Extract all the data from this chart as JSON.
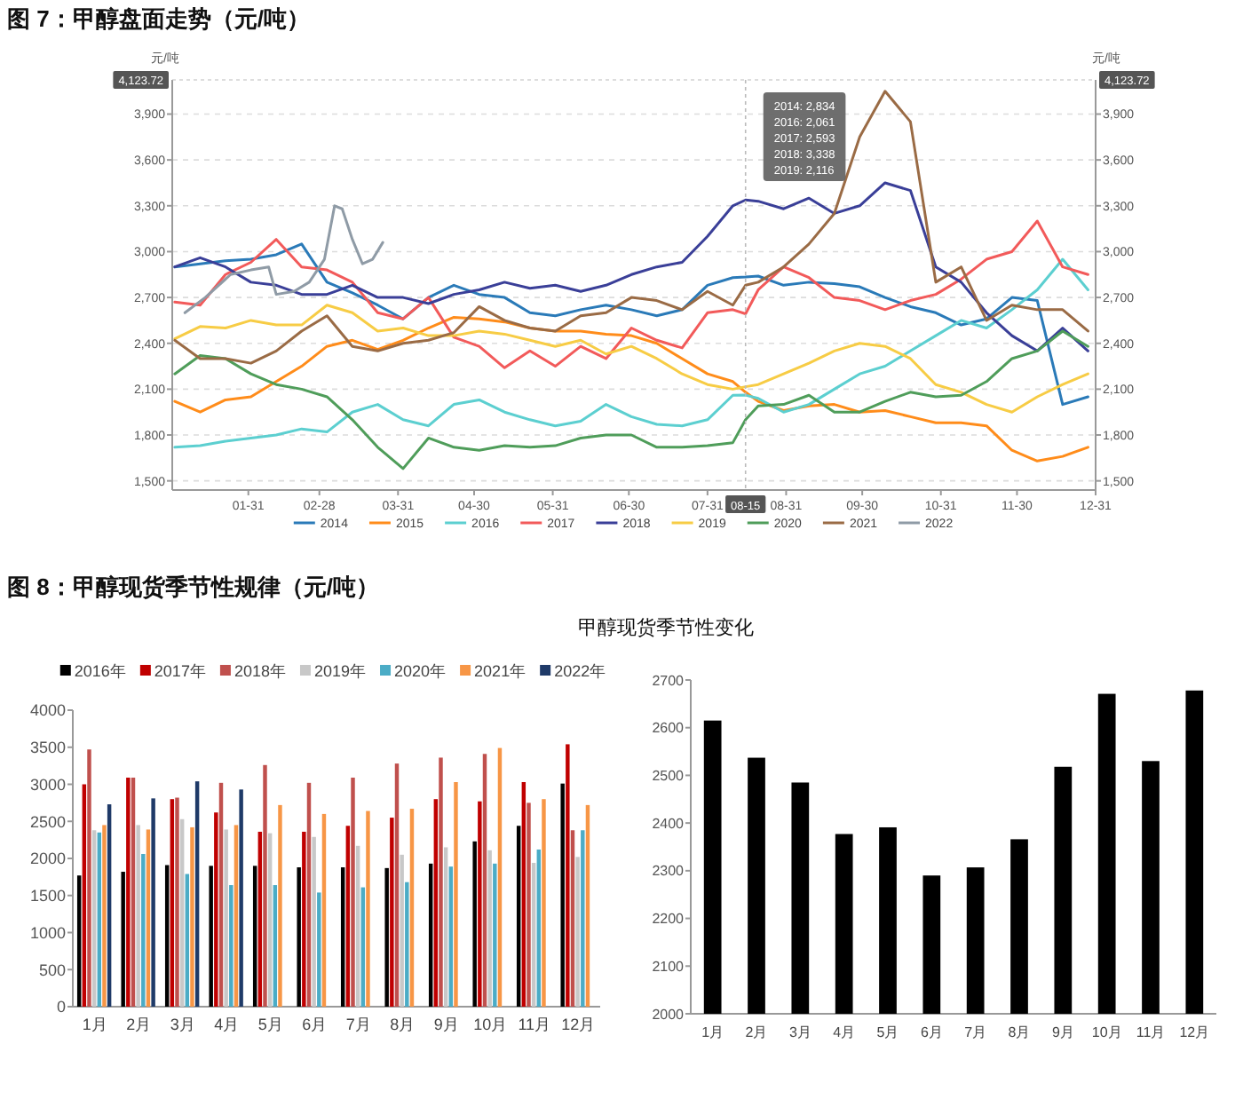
{
  "chart_data": [
    {
      "type": "line",
      "title": "图 7：甲醇盘面走势（元/吨）",
      "ylabel": "元/吨",
      "y2label": "元/吨",
      "x": [
        "--01-02",
        "--01-12",
        "--01-22",
        "--02-01",
        "--02-11",
        "--02-21",
        "--03-03",
        "--03-13",
        "--03-23",
        "--04-02",
        "--04-12",
        "--04-22",
        "--05-02",
        "--05-12",
        "--05-22",
        "--06-01",
        "--06-11",
        "--06-21",
        "--07-01",
        "--07-11",
        "--07-21",
        "--07-31",
        "--08-10",
        "--08-15",
        "--08-20",
        "--08-30",
        "--09-09",
        "--09-19",
        "--09-29",
        "--10-09",
        "--10-19",
        "--10-29",
        "--11-08",
        "--11-18",
        "--11-28",
        "--12-08",
        "--12-18",
        "--12-28"
      ],
      "xlim": [
        "--01-01",
        "--12-31"
      ],
      "xticks": [
        {
          "value": "--01-31",
          "label": "01-31"
        },
        {
          "value": "--02-28",
          "label": "02-28"
        },
        {
          "value": "--03-31",
          "label": "03-31"
        },
        {
          "value": "--04-30",
          "label": "04-30"
        },
        {
          "value": "--05-31",
          "label": "05-31"
        },
        {
          "value": "--06-30",
          "label": "06-30"
        },
        {
          "value": "--07-31",
          "label": "07-31"
        },
        {
          "value": "--08-31",
          "label": "08-31"
        },
        {
          "value": "--09-30",
          "label": "09-30"
        },
        {
          "value": "--10-31",
          "label": "10-31"
        },
        {
          "value": "--11-30",
          "label": "11-30"
        },
        {
          "value": "--12-31",
          "label": "12-31"
        }
      ],
      "ylim": [
        1440,
        4123.72
      ],
      "yticks": [
        {
          "value": 1500,
          "label": "1,500"
        },
        {
          "value": 1800,
          "label": "1,800"
        },
        {
          "value": 2100,
          "label": "2,100"
        },
        {
          "value": 2400,
          "label": "2,400"
        },
        {
          "value": 2700,
          "label": "2,700"
        },
        {
          "value": 3000,
          "label": "3,000"
        },
        {
          "value": 3300,
          "label": "3,300"
        },
        {
          "value": 3600,
          "label": "3,600"
        },
        {
          "value": 3900,
          "label": "3,900"
        }
      ],
      "y2lim": [
        1440,
        4123.72
      ],
      "y2ticks": [
        {
          "value": 1500,
          "label": "1,500"
        },
        {
          "value": 1800,
          "label": "1,800"
        },
        {
          "value": 2100,
          "label": "2,100"
        },
        {
          "value": 2400,
          "label": "2,400"
        },
        {
          "value": 2700,
          "label": "2,700"
        },
        {
          "value": 3000,
          "label": "3,000"
        },
        {
          "value": 3300,
          "label": "3,300"
        },
        {
          "value": 3600,
          "label": "3,600"
        },
        {
          "value": 3900,
          "label": "3,900"
        }
      ],
      "grid": "y",
      "legend": "bottom",
      "marker": "none",
      "line_style": "solid",
      "ref_lines": [
        {
          "axis": "x",
          "value": "--08-15",
          "label": "08-15"
        },
        {
          "axis": "y",
          "value": 4123.72,
          "label": "4,123.72"
        }
      ],
      "annotations": [
        "2014: 2,834",
        "2016: 2,061",
        "2017: 2,593",
        "2018: 3,338",
        "2019: 2,116"
      ],
      "series": [
        {
          "name": "2014",
          "color": "#2a7ab8",
          "values": [
            2900,
            2920,
            2940,
            2950,
            2980,
            3050,
            2800,
            2730,
            2650,
            2560,
            2700,
            2780,
            2720,
            2700,
            2600,
            2580,
            2620,
            2650,
            2620,
            2580,
            2620,
            2780,
            2830,
            2834,
            2840,
            2780,
            2800,
            2790,
            2770,
            2700,
            2640,
            2600,
            2520,
            2560,
            2700,
            2680,
            2000,
            2050
          ]
        },
        {
          "name": "2015",
          "color": "#ff8c1a",
          "values": [
            2020,
            1950,
            2030,
            2050,
            2150,
            2250,
            2380,
            2420,
            2360,
            2420,
            2500,
            2570,
            2560,
            2540,
            2500,
            2480,
            2480,
            2460,
            2450,
            2400,
            2300,
            2200,
            2150,
            2080,
            2020,
            1960,
            1990,
            2000,
            1950,
            1960,
            1920,
            1880,
            1880,
            1860,
            1700,
            1630,
            1660,
            1720
          ]
        },
        {
          "name": "2016",
          "color": "#5ccfd0",
          "values": [
            1720,
            1730,
            1760,
            1780,
            1800,
            1840,
            1820,
            1950,
            2000,
            1900,
            1860,
            2000,
            2030,
            1950,
            1900,
            1860,
            1890,
            2000,
            1920,
            1870,
            1860,
            1900,
            2060,
            2061,
            2040,
            1950,
            2000,
            2100,
            2200,
            2250,
            2350,
            2450,
            2550,
            2500,
            2620,
            2750,
            2950,
            2750
          ]
        },
        {
          "name": "2017",
          "color": "#f25a5a",
          "values": [
            2670,
            2650,
            2850,
            2930,
            3080,
            2900,
            2880,
            2800,
            2600,
            2560,
            2700,
            2440,
            2380,
            2240,
            2350,
            2250,
            2380,
            2300,
            2500,
            2420,
            2370,
            2600,
            2620,
            2593,
            2750,
            2900,
            2830,
            2700,
            2680,
            2620,
            2680,
            2720,
            2820,
            2950,
            3000,
            3200,
            2900,
            2850
          ]
        },
        {
          "name": "2018",
          "color": "#3a3f98",
          "values": [
            2900,
            2960,
            2900,
            2800,
            2780,
            2720,
            2720,
            2780,
            2700,
            2700,
            2660,
            2720,
            2750,
            2800,
            2760,
            2780,
            2740,
            2780,
            2850,
            2900,
            2930,
            3100,
            3300,
            3338,
            3330,
            3280,
            3350,
            3250,
            3300,
            3450,
            3400,
            2900,
            2800,
            2600,
            2450,
            2350,
            2500,
            2350
          ]
        },
        {
          "name": "2019",
          "color": "#f7cc45",
          "values": [
            2430,
            2510,
            2500,
            2550,
            2520,
            2520,
            2650,
            2600,
            2480,
            2500,
            2450,
            2450,
            2480,
            2460,
            2420,
            2380,
            2420,
            2330,
            2380,
            2300,
            2200,
            2130,
            2100,
            2116,
            2130,
            2200,
            2270,
            2350,
            2400,
            2380,
            2300,
            2130,
            2080,
            2000,
            1950,
            2050,
            2130,
            2200
          ]
        },
        {
          "name": "2020",
          "color": "#4f9d5a",
          "values": [
            2200,
            2320,
            2300,
            2200,
            2130,
            2100,
            2050,
            1900,
            1720,
            1580,
            1780,
            1720,
            1700,
            1730,
            1720,
            1730,
            1780,
            1800,
            1800,
            1720,
            1720,
            1730,
            1750,
            1900,
            1990,
            2000,
            2060,
            1950,
            1950,
            2020,
            2080,
            2050,
            2060,
            2150,
            2300,
            2350,
            2480,
            2380
          ]
        },
        {
          "name": "2021",
          "color": "#9a6b45",
          "values": [
            2420,
            2300,
            2300,
            2270,
            2350,
            2480,
            2580,
            2380,
            2350,
            2400,
            2420,
            2470,
            2640,
            2550,
            2500,
            2480,
            2580,
            2600,
            2700,
            2680,
            2620,
            2740,
            2650,
            2780,
            2800,
            2900,
            3050,
            3250,
            3750,
            4050,
            3850,
            2800,
            2900,
            2550,
            2650,
            2620,
            2620,
            2480
          ]
        },
        {
          "name": "2022",
          "color": "#8f9ba6",
          "x": [
            "--01-06",
            "--01-14",
            "--01-24",
            "--02-01",
            "--02-08",
            "--02-11",
            "--02-18",
            "--02-24",
            "--03-02",
            "--03-06",
            "--03-09",
            "--03-13",
            "--03-17",
            "--03-21",
            "--03-25"
          ],
          "values": [
            2600,
            2700,
            2850,
            2880,
            2900,
            2720,
            2740,
            2800,
            2950,
            3300,
            3280,
            3080,
            2920,
            2950,
            3060
          ]
        }
      ]
    },
    {
      "type": "bar",
      "title": "图 8：甲醇现货季节性规律（元/吨）",
      "legend": "top",
      "categories": [
        "1月",
        "2月",
        "3月",
        "4月",
        "5月",
        "6月",
        "7月",
        "8月",
        "9月",
        "10月",
        "11月",
        "12月"
      ],
      "ylim": [
        0,
        4000
      ],
      "yticks": [
        0,
        500,
        1000,
        1500,
        2000,
        2500,
        3000,
        3500,
        4000
      ],
      "series": [
        {
          "name": "2016年",
          "color": "#000000",
          "values": [
            1770,
            1820,
            1910,
            1900,
            1900,
            1880,
            1880,
            1870,
            1930,
            2230,
            2440,
            3010
          ]
        },
        {
          "name": "2017年",
          "color": "#c00000",
          "values": [
            3000,
            3090,
            2800,
            2620,
            2360,
            2360,
            2440,
            2550,
            2800,
            2770,
            3030,
            3540
          ]
        },
        {
          "name": "2018年",
          "color": "#c0504d",
          "values": [
            3470,
            3090,
            2820,
            3020,
            3260,
            3020,
            3090,
            3280,
            3360,
            3410,
            2750,
            2380
          ]
        },
        {
          "name": "2019年",
          "color": "#c8c8c8",
          "values": [
            2380,
            2450,
            2530,
            2390,
            2340,
            2290,
            2170,
            2050,
            2150,
            2110,
            1940,
            2020
          ]
        },
        {
          "name": "2020年",
          "color": "#4bacc6",
          "values": [
            2350,
            2060,
            1790,
            1640,
            1640,
            1540,
            1610,
            1680,
            1890,
            1930,
            2120,
            2380
          ]
        },
        {
          "name": "2021年",
          "color": "#f79646",
          "values": [
            2450,
            2390,
            2420,
            2450,
            2720,
            2600,
            2640,
            2670,
            3030,
            3490,
            2800,
            2720
          ]
        },
        {
          "name": "2022年",
          "color": "#1f3a68",
          "values": [
            2730,
            2810,
            3040,
            2930,
            null,
            null,
            null,
            null,
            null,
            null,
            null,
            null
          ]
        }
      ]
    },
    {
      "type": "bar",
      "title": "甲醇现货季节性变化",
      "categories": [
        "1月",
        "2月",
        "3月",
        "4月",
        "5月",
        "6月",
        "7月",
        "8月",
        "9月",
        "10月",
        "11月",
        "12月"
      ],
      "ylim": [
        2000,
        2700
      ],
      "yticks": [
        2000,
        2100,
        2200,
        2300,
        2400,
        2500,
        2600,
        2700
      ],
      "color": "#000000",
      "values": [
        2615,
        2537,
        2485,
        2377,
        2391,
        2290,
        2307,
        2366,
        2518,
        2671,
        2530,
        2678
      ]
    }
  ]
}
